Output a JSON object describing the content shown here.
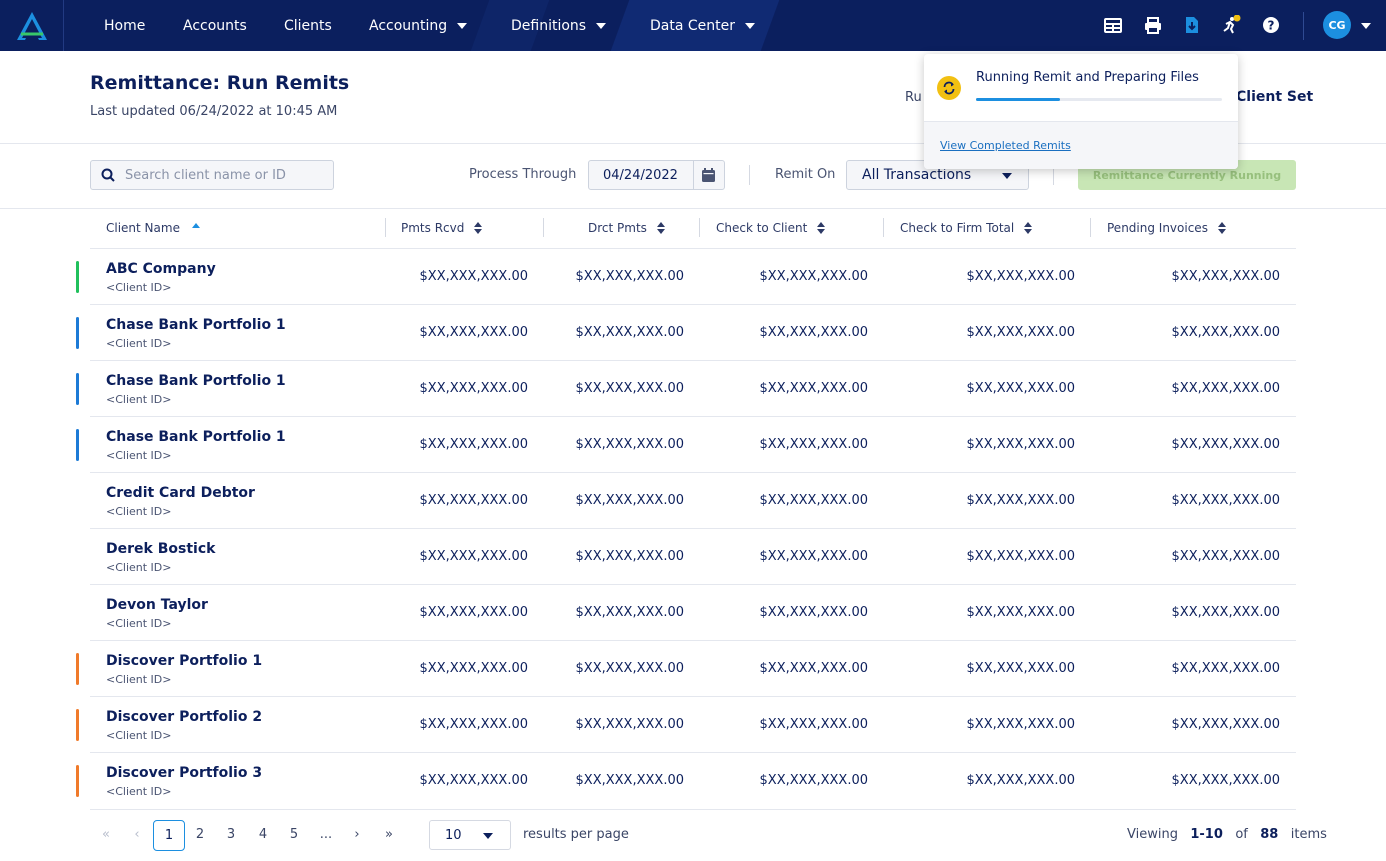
{
  "nav": {
    "items": [
      {
        "label": "Home"
      },
      {
        "label": "Accounts"
      },
      {
        "label": "Clients"
      },
      {
        "label": "Accounting"
      },
      {
        "label": "Definitions"
      },
      {
        "label": "Data Center"
      }
    ],
    "icons": [
      "grid-icon",
      "print-icon",
      "file-download-icon",
      "runner-icon",
      "help-icon"
    ],
    "avatar_initials": "CG",
    "colors": {
      "bg": "#0b1f5e",
      "accent": "#1c8fe0",
      "notify": "#f2c012"
    }
  },
  "header": {
    "title": "Remittance: Run Remits",
    "last_updated": "Last updated 06/24/2022 at 10:45 AM",
    "right_label": "Ru",
    "right_bold": "Client Set"
  },
  "filters": {
    "search_placeholder": "Search client name or ID",
    "process_through_label": "Process Through",
    "process_through_value": "04/24/2022",
    "remit_on_label": "Remit On",
    "remit_on_value": "All Transactions",
    "run_button": "Remittance Currently Running"
  },
  "table": {
    "columns": [
      "Client Name",
      "Pmts Rcvd",
      "Drct Pmts",
      "Check to Client",
      "Check to Firm Total",
      "Pending Invoices"
    ],
    "rows": [
      {
        "name": "ABC Company",
        "id": "<Client ID>",
        "bar": "#20c05c",
        "values": [
          "$XX,XXX,XXX.00",
          "$XX,XXX,XXX.00",
          "$XX,XXX,XXX.00",
          "$XX,XXX,XXX.00",
          "$XX,XXX,XXX.00"
        ]
      },
      {
        "name": "Chase Bank Portfolio 1",
        "id": "<Client ID>",
        "bar": "#1c7ad6",
        "values": [
          "$XX,XXX,XXX.00",
          "$XX,XXX,XXX.00",
          "$XX,XXX,XXX.00",
          "$XX,XXX,XXX.00",
          "$XX,XXX,XXX.00"
        ]
      },
      {
        "name": "Chase Bank Portfolio 1",
        "id": "<Client ID>",
        "bar": "#1c7ad6",
        "values": [
          "$XX,XXX,XXX.00",
          "$XX,XXX,XXX.00",
          "$XX,XXX,XXX.00",
          "$XX,XXX,XXX.00",
          "$XX,XXX,XXX.00"
        ]
      },
      {
        "name": "Chase Bank Portfolio 1",
        "id": "<Client ID>",
        "bar": "#1c7ad6",
        "values": [
          "$XX,XXX,XXX.00",
          "$XX,XXX,XXX.00",
          "$XX,XXX,XXX.00",
          "$XX,XXX,XXX.00",
          "$XX,XXX,XXX.00"
        ]
      },
      {
        "name": "Credit Card Debtor",
        "id": "<Client ID>",
        "bar": "",
        "values": [
          "$XX,XXX,XXX.00",
          "$XX,XXX,XXX.00",
          "$XX,XXX,XXX.00",
          "$XX,XXX,XXX.00",
          "$XX,XXX,XXX.00"
        ]
      },
      {
        "name": "Derek Bostick",
        "id": "<Client ID>",
        "bar": "",
        "values": [
          "$XX,XXX,XXX.00",
          "$XX,XXX,XXX.00",
          "$XX,XXX,XXX.00",
          "$XX,XXX,XXX.00",
          "$XX,XXX,XXX.00"
        ]
      },
      {
        "name": "Devon Taylor",
        "id": "<Client ID>",
        "bar": "",
        "values": [
          "$XX,XXX,XXX.00",
          "$XX,XXX,XXX.00",
          "$XX,XXX,XXX.00",
          "$XX,XXX,XXX.00",
          "$XX,XXX,XXX.00"
        ]
      },
      {
        "name": "Discover Portfolio 1",
        "id": "<Client ID>",
        "bar": "#f07a2a",
        "values": [
          "$XX,XXX,XXX.00",
          "$XX,XXX,XXX.00",
          "$XX,XXX,XXX.00",
          "$XX,XXX,XXX.00",
          "$XX,XXX,XXX.00"
        ]
      },
      {
        "name": "Discover Portfolio 2",
        "id": "<Client ID>",
        "bar": "#f07a2a",
        "values": [
          "$XX,XXX,XXX.00",
          "$XX,XXX,XXX.00",
          "$XX,XXX,XXX.00",
          "$XX,XXX,XXX.00",
          "$XX,XXX,XXX.00"
        ]
      },
      {
        "name": "Discover Portfolio 3",
        "id": "<Client ID>",
        "bar": "#f07a2a",
        "values": [
          "$XX,XXX,XXX.00",
          "$XX,XXX,XXX.00",
          "$XX,XXX,XXX.00",
          "$XX,XXX,XXX.00",
          "$XX,XXX,XXX.00"
        ]
      }
    ]
  },
  "pagination": {
    "first": "«",
    "prev": "‹",
    "current": "1",
    "pages": [
      "2",
      "3",
      "4",
      "5",
      "..."
    ],
    "next": "›",
    "last": "»",
    "per_page": "10",
    "per_page_label": "results per page",
    "viewing_prefix": "Viewing",
    "viewing_range": "1-10",
    "viewing_of": "of",
    "viewing_total": "88",
    "viewing_suffix": "items"
  },
  "popup": {
    "title": "Running Remit and Preparing Files",
    "progress": 0.34,
    "link": "View Completed Remits"
  }
}
